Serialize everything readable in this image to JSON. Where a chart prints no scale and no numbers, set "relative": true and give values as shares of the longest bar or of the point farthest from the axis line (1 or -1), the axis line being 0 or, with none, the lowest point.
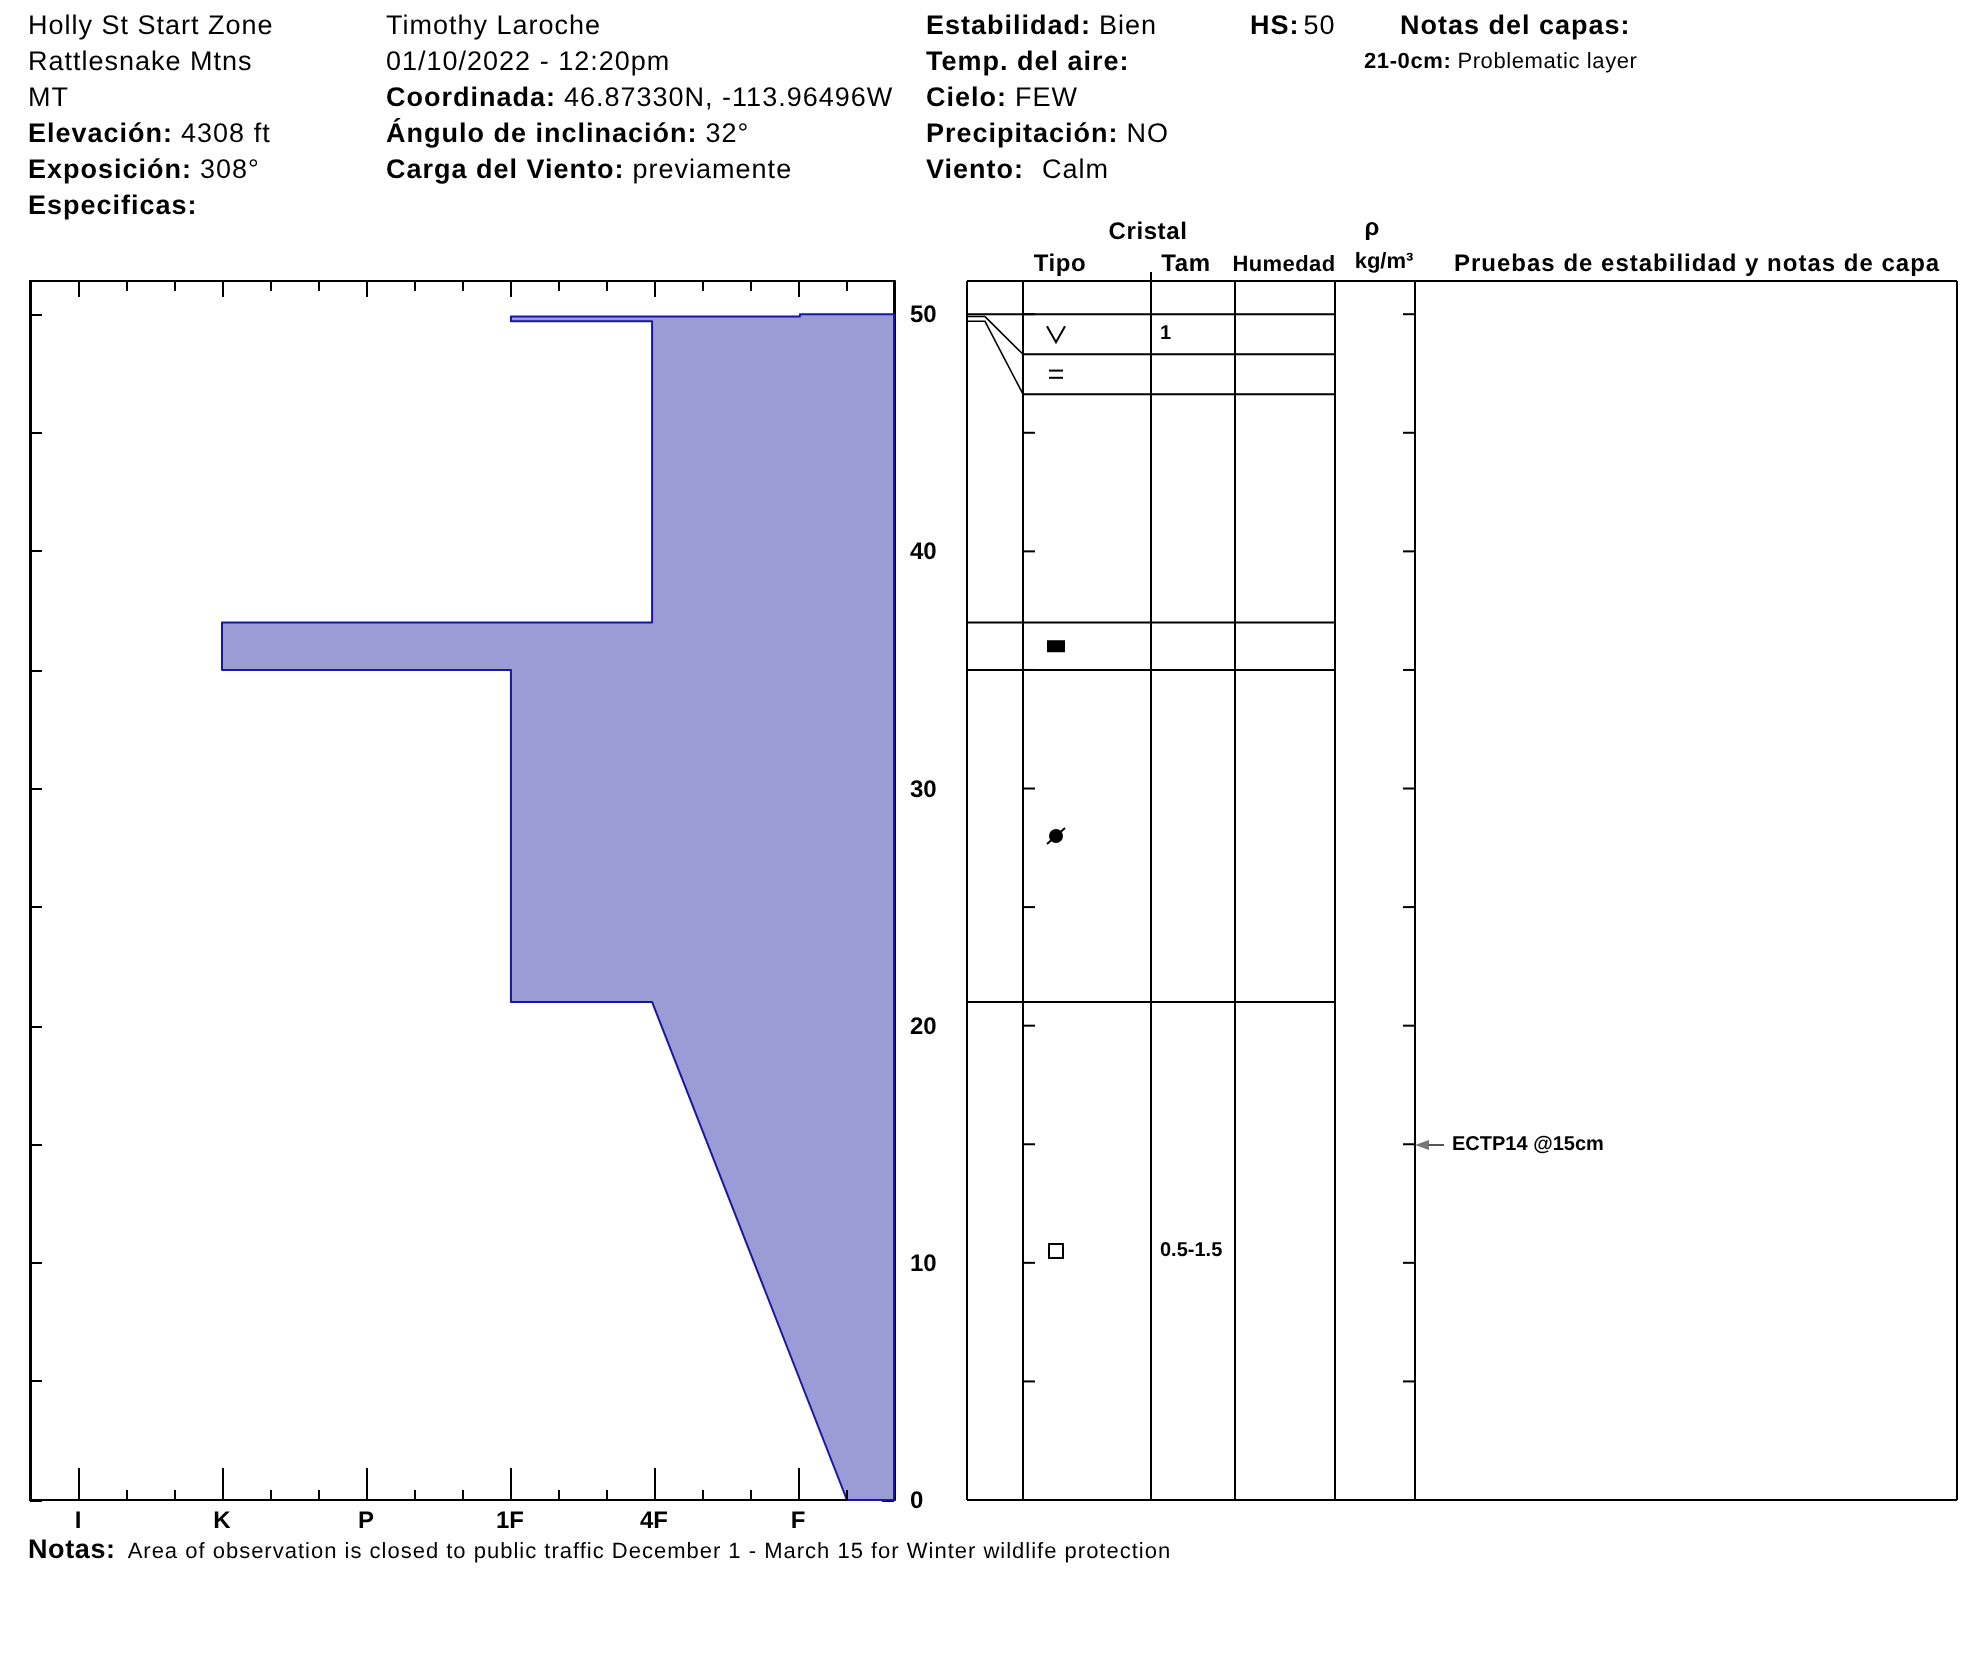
{
  "chart_data": {
    "type": "area",
    "orientation": "horizontal",
    "relative": true,
    "x": [
      50,
      49.9,
      49.9,
      49.7,
      49.7,
      37,
      37,
      35,
      35,
      21,
      21,
      0
    ],
    "values": [
      -0.14,
      -0.14,
      -0.57,
      -0.57,
      -0.36,
      -0.36,
      -1,
      -1,
      -0.57,
      -0.57,
      -0.36,
      -0.07
    ],
    "color": "#9b9bd5",
    "ylim": [
      0,
      51.4
    ],
    "yticks": [
      0,
      {
        "value": 5,
        "label": null
      },
      10,
      {
        "value": 15,
        "label": null
      },
      20,
      {
        "value": 25,
        "label": null
      },
      30,
      {
        "value": 35,
        "label": null
      },
      40,
      {
        "value": 45,
        "label": null
      },
      50
    ],
    "annotations": [
      "Holly St Start Zone",
      "Rattlesnake Mtns",
      "MT",
      "Elevación:",
      "4308 ft",
      "Exposición:",
      "308°",
      "Especificas:",
      "Timothy Laroche",
      "01/10/2022 - 12:20pm",
      "Coordinada:",
      "46.87330N, -113.96496W",
      "Ángulo de inclinación:",
      "32°",
      "Carga del Viento:",
      "previamente",
      "Estabilidad:",
      "Bien",
      "Temp. del aire:",
      "Cielo:",
      "FEW",
      "Precipitación:",
      "NO",
      "Viento:",
      "Calm",
      "HS:",
      "50",
      "Notas del capas:",
      "21-0cm:",
      "Problematic layer",
      "Cristal",
      "Tipo",
      "Tam",
      "Humedad",
      "ρ",
      "kg/m³",
      "Pruebas de estabilidad y notas de capa",
      "1",
      "0.5-1.5",
      "ECTP14 @15cm",
      "I",
      "K",
      "P",
      "1F",
      "4F",
      "F",
      "Notas:",
      "Area of observation is closed to public traffic December 1 - March 15 for Winter wildlife protection"
    ]
  }
}
